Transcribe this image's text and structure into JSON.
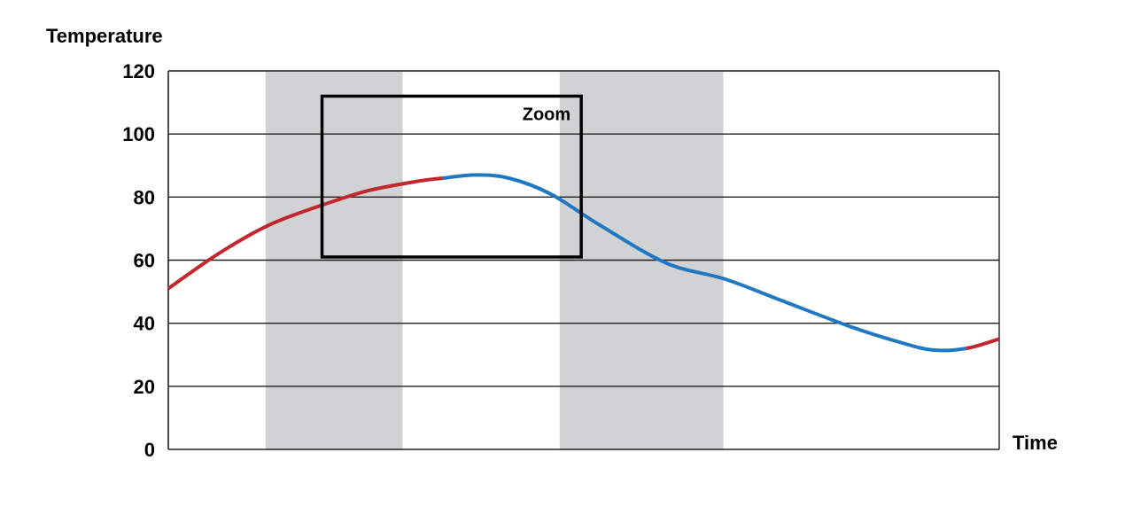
{
  "chart_data": {
    "type": "line",
    "xlabel": "Time",
    "ylabel": "Temperature",
    "ylim": [
      0,
      120
    ],
    "yticks": [
      "0",
      "20",
      "40",
      "60",
      "80",
      "100",
      "120"
    ],
    "grid": true,
    "xlim": [
      0,
      100
    ],
    "points": [
      {
        "x": 0,
        "y": 51
      },
      {
        "x": 6,
        "y": 62
      },
      {
        "x": 12,
        "y": 71
      },
      {
        "x": 18,
        "y": 77
      },
      {
        "x": 24,
        "y": 82
      },
      {
        "x": 30,
        "y": 85
      },
      {
        "x": 33,
        "y": 86
      },
      {
        "x": 37,
        "y": 87
      },
      {
        "x": 41,
        "y": 86
      },
      {
        "x": 46,
        "y": 81
      },
      {
        "x": 52,
        "y": 71
      },
      {
        "x": 60,
        "y": 59
      },
      {
        "x": 67,
        "y": 54
      },
      {
        "x": 74,
        "y": 47
      },
      {
        "x": 82,
        "y": 39
      },
      {
        "x": 88,
        "y": 34
      },
      {
        "x": 92,
        "y": 31.5
      },
      {
        "x": 96,
        "y": 32
      },
      {
        "x": 100,
        "y": 35
      }
    ],
    "segments": [
      {
        "color": "#c1272d",
        "x_from": 0,
        "x_to": 33
      },
      {
        "color": "#1f78c1",
        "x_from": 33,
        "x_to": 96
      },
      {
        "color": "#c1272d",
        "x_from": 96,
        "x_to": 100
      }
    ],
    "shaded_bands": [
      {
        "x_from": 11.7,
        "x_to": 28.2,
        "color": "#d1d2d4"
      },
      {
        "x_from": 47.1,
        "x_to": 66.8,
        "color": "#d1d2d4"
      }
    ],
    "zoom_box": {
      "label": "Zoom",
      "x_from": 18.5,
      "x_to": 49.7,
      "y_from": 61,
      "y_to": 112
    }
  }
}
